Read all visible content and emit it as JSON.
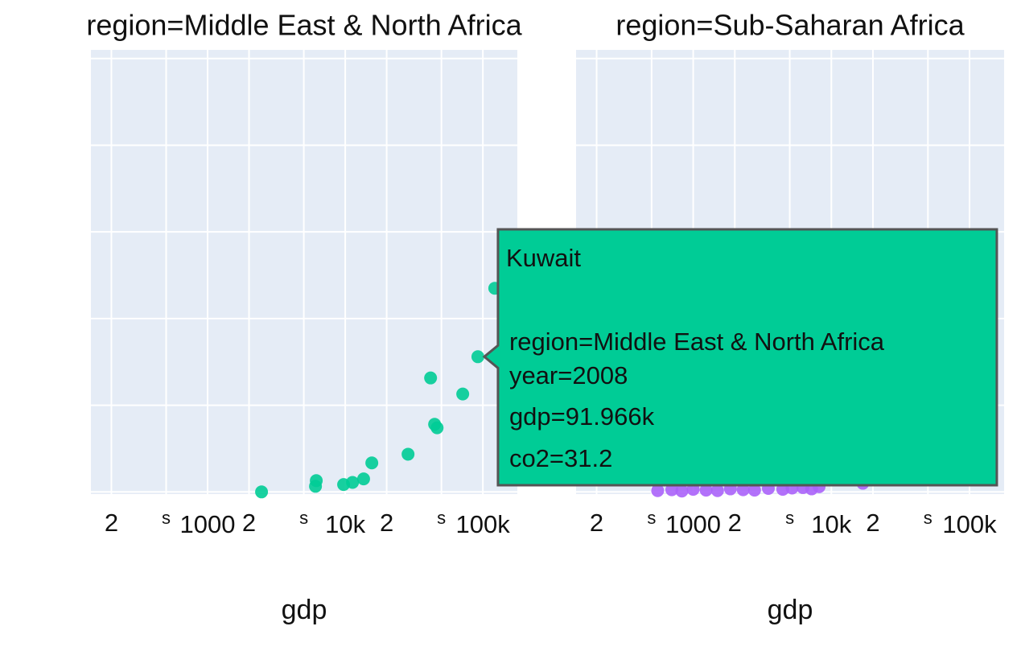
{
  "chart_data": [
    {
      "type": "scatter",
      "title": "region=Middle East & North Africa",
      "xlabel": "gdp",
      "xlog": true,
      "xlim": [
        142,
        178000
      ],
      "ylim": [
        -0.5,
        102
      ],
      "xticks": [
        {
          "value": 200,
          "label": "2"
        },
        {
          "value": 500,
          "label": "s"
        },
        1000,
        {
          "value": 2000,
          "label": "2"
        },
        {
          "value": 5000,
          "label": "s"
        },
        {
          "value": 10000,
          "label": "10k"
        },
        {
          "value": 20000,
          "label": "2"
        },
        {
          "value": 50000,
          "label": "s"
        },
        {
          "value": 100000,
          "label": "100k"
        }
      ],
      "yticks": [
        0,
        20,
        40,
        60,
        80,
        100
      ],
      "grid": true,
      "series": [
        {
          "color": "#00cc96",
          "x": [
            2466,
            6080,
            6160,
            9730,
            11300,
            13600,
            15600,
            28600,
            44600,
            46500,
            41700,
            71400,
            91966,
            122000
          ],
          "values": [
            0,
            1.3,
            2.6,
            1.7,
            2.2,
            3.0,
            6.7,
            8.7,
            15.6,
            14.8,
            26.3,
            22.6,
            31.2,
            47.0
          ]
        }
      ],
      "tooltip": {
        "title": "Kuwait",
        "lines": [
          "region=Middle East & North Africa",
          "year=2008",
          "gdp=91.966k",
          "co2=31.2"
        ]
      }
    },
    {
      "type": "scatter",
      "title": "region=Sub-Saharan Africa",
      "xlabel": "gdp",
      "xlog": true,
      "xlim": [
        142,
        178000
      ],
      "ylim": [
        -0.5,
        102
      ],
      "xticks": [
        {
          "value": 200,
          "label": "2"
        },
        {
          "value": 500,
          "label": "s"
        },
        1000,
        {
          "value": 2000,
          "label": "2"
        },
        {
          "value": 5000,
          "label": "s"
        },
        {
          "value": 10000,
          "label": "10k"
        },
        {
          "value": 20000,
          "label": "2"
        },
        {
          "value": 50000,
          "label": "s"
        },
        {
          "value": 100000,
          "label": "100k"
        }
      ],
      "yticks": [
        0,
        20,
        40,
        60,
        80,
        100
      ],
      "grid": true,
      "series": [
        {
          "color": "#ab63fa",
          "x": [
            553,
            700,
            828,
            1000,
            1240,
            1500,
            1860,
            2300,
            2780,
            3500,
            4450,
            5200,
            6230,
            7200,
            8150,
            16900
          ],
          "values": [
            0.3,
            0.5,
            0.2,
            0.6,
            0.4,
            0.3,
            0.7,
            0.5,
            0.4,
            0.8,
            0.6,
            0.9,
            1.0,
            0.7,
            1.2,
            2.0
          ]
        }
      ]
    }
  ]
}
